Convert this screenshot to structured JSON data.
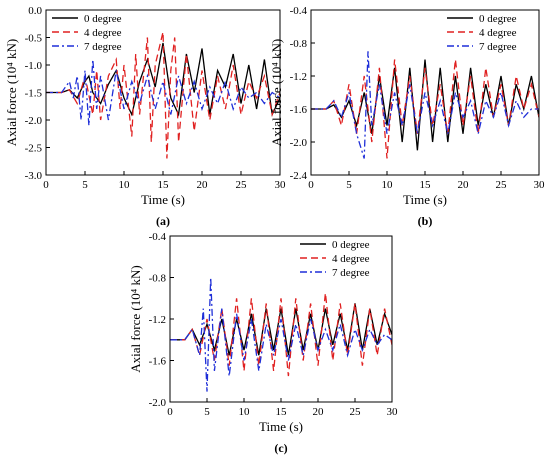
{
  "chart_data": [
    {
      "type": "line",
      "panel_label": "(a)",
      "xlabel": "Time (s)",
      "ylabel": "Axial force (10⁴ kN)",
      "xlim": [
        0,
        30
      ],
      "ylim": [
        -3.0,
        0.0
      ],
      "xticks": [
        0,
        5,
        10,
        15,
        20,
        25,
        30
      ],
      "yticks": [
        0.0,
        -0.5,
        -1.0,
        -1.5,
        -2.0,
        -2.5,
        -3.0
      ],
      "ytick_labels": [
        "0.0",
        "-0.5",
        "-1.0",
        "-1.5",
        "-2.0",
        "-2.5",
        "-3.0"
      ],
      "legend_position": "top-left",
      "series": [
        {
          "name": "0 degree",
          "color": "#000000",
          "dash": "solid",
          "x": [
            0,
            1,
            2,
            3,
            4,
            5,
            5.5,
            6,
            7,
            8,
            9,
            10,
            11,
            12,
            13,
            14,
            15,
            16,
            17,
            18,
            19,
            20,
            21,
            22,
            23,
            24,
            25,
            26,
            27,
            28,
            29,
            30
          ],
          "y": [
            -1.5,
            -1.5,
            -1.5,
            -1.45,
            -1.6,
            -1.3,
            -1.2,
            -1.5,
            -1.7,
            -1.35,
            -1.1,
            -1.6,
            -1.9,
            -1.3,
            -0.9,
            -1.4,
            -0.6,
            -1.6,
            -1.9,
            -0.8,
            -1.5,
            -0.7,
            -1.9,
            -1.1,
            -1.4,
            -0.8,
            -1.7,
            -1.0,
            -1.8,
            -0.9,
            -1.9,
            -1.6
          ]
        },
        {
          "name": "4 degree",
          "color": "#e02020",
          "dash": "7,4",
          "x": [
            0,
            1,
            2,
            3,
            4,
            5,
            6,
            6.5,
            7,
            8,
            9,
            9.5,
            10,
            11,
            11.5,
            12,
            13,
            13.5,
            14,
            15,
            15.5,
            16,
            16.5,
            17,
            18,
            19,
            20,
            21,
            22,
            23,
            24,
            25,
            26,
            27,
            28,
            29,
            30
          ],
          "y": [
            -1.5,
            -1.5,
            -1.5,
            -1.45,
            -1.7,
            -1.2,
            -1.9,
            -1.1,
            -2.0,
            -1.2,
            -0.9,
            -1.8,
            -1.0,
            -2.3,
            -0.8,
            -1.9,
            -0.5,
            -2.4,
            -1.0,
            -0.4,
            -2.7,
            -1.1,
            -0.5,
            -2.4,
            -0.8,
            -2.2,
            -1.1,
            -2.0,
            -1.2,
            -1.8,
            -1.0,
            -1.9,
            -1.3,
            -1.6,
            -1.2,
            -1.9,
            -1.5
          ]
        },
        {
          "name": "7 degree",
          "color": "#1f2fd8",
          "dash": "7,3,2,3",
          "x": [
            0,
            1,
            2,
            3,
            3.5,
            4,
            4.5,
            5,
            5.5,
            6,
            6.5,
            7,
            8,
            9,
            10,
            11,
            12,
            13,
            14,
            15,
            16,
            17,
            18,
            19,
            20,
            21,
            22,
            23,
            24,
            25,
            26,
            27,
            28,
            29,
            30
          ],
          "y": [
            -1.5,
            -1.5,
            -1.5,
            -1.3,
            -1.6,
            -1.2,
            -2.0,
            -1.1,
            -2.1,
            -0.9,
            -1.8,
            -1.2,
            -2.0,
            -1.1,
            -1.8,
            -1.3,
            -1.7,
            -1.2,
            -1.8,
            -1.3,
            -1.9,
            -1.2,
            -1.7,
            -1.3,
            -1.8,
            -1.4,
            -1.7,
            -1.3,
            -1.8,
            -1.4,
            -1.6,
            -1.5,
            -1.7,
            -1.5,
            -1.6
          ]
        }
      ]
    },
    {
      "type": "line",
      "panel_label": "(b)",
      "xlabel": "Time (s)",
      "ylabel": "Axial force (10⁴ kN)",
      "xlim": [
        0,
        30
      ],
      "ylim": [
        -2.4,
        -0.4
      ],
      "xticks": [
        0,
        5,
        10,
        15,
        20,
        25,
        30
      ],
      "yticks": [
        -0.4,
        -0.8,
        -1.2,
        -1.6,
        -2.0,
        -2.4
      ],
      "ytick_labels": [
        "-0.4",
        "-0.8",
        "-1.2",
        "-1.6",
        "-2.0",
        "-2.4"
      ],
      "legend_position": "top-right",
      "series": [
        {
          "name": "0 degree",
          "color": "#000000",
          "dash": "solid",
          "x": [
            0,
            1,
            2,
            3,
            4,
            5,
            6,
            7,
            8,
            9,
            10,
            11,
            12,
            13,
            14,
            15,
            16,
            17,
            18,
            19,
            20,
            21,
            22,
            23,
            24,
            25,
            26,
            27,
            28,
            29,
            30
          ],
          "y": [
            -1.6,
            -1.6,
            -1.6,
            -1.55,
            -1.7,
            -1.5,
            -1.8,
            -1.4,
            -1.9,
            -1.2,
            -1.8,
            -1.1,
            -2.0,
            -1.1,
            -2.1,
            -1.0,
            -2.0,
            -1.1,
            -2.0,
            -1.2,
            -1.9,
            -1.1,
            -1.8,
            -1.3,
            -1.7,
            -1.2,
            -1.8,
            -1.3,
            -1.6,
            -1.2,
            -1.7
          ]
        },
        {
          "name": "4 degree",
          "color": "#e02020",
          "dash": "7,4",
          "x": [
            0,
            1,
            2,
            3,
            4,
            5,
            6,
            7,
            8,
            9,
            10,
            11,
            12,
            13,
            14,
            15,
            16,
            17,
            18,
            19,
            20,
            21,
            22,
            23,
            24,
            25,
            26,
            27,
            28,
            29,
            30
          ],
          "y": [
            -1.6,
            -1.6,
            -1.6,
            -1.5,
            -1.8,
            -1.3,
            -1.9,
            -1.2,
            -2.0,
            -1.1,
            -2.2,
            -1.0,
            -1.8,
            -1.2,
            -1.9,
            -1.1,
            -1.8,
            -1.3,
            -1.9,
            -1.0,
            -1.8,
            -1.2,
            -1.9,
            -1.1,
            -1.7,
            -1.3,
            -1.8,
            -1.2,
            -1.6,
            -1.3,
            -1.7
          ]
        },
        {
          "name": "7 degree",
          "color": "#1f2fd8",
          "dash": "7,3,2,3",
          "x": [
            0,
            1,
            2,
            3,
            4,
            5,
            6,
            7,
            7.5,
            8,
            9,
            10,
            11,
            12,
            13,
            14,
            15,
            16,
            17,
            18,
            19,
            20,
            21,
            22,
            23,
            24,
            25,
            26,
            27,
            28,
            29,
            30
          ],
          "y": [
            -1.6,
            -1.6,
            -1.6,
            -1.5,
            -1.7,
            -1.4,
            -1.9,
            -2.2,
            -0.9,
            -1.8,
            -1.3,
            -1.9,
            -1.4,
            -1.8,
            -1.3,
            -1.9,
            -1.4,
            -1.8,
            -1.5,
            -1.9,
            -1.4,
            -1.7,
            -1.5,
            -1.9,
            -1.5,
            -1.7,
            -1.4,
            -1.8,
            -1.5,
            -1.7,
            -1.6,
            -1.6
          ]
        }
      ]
    },
    {
      "type": "line",
      "panel_label": "(c)",
      "xlabel": "Time (s)",
      "ylabel": "Axial force (10⁴ kN)",
      "xlim": [
        0,
        30
      ],
      "ylim": [
        -2.0,
        -0.4
      ],
      "xticks": [
        0,
        5,
        10,
        15,
        20,
        25,
        30
      ],
      "yticks": [
        -0.4,
        -0.8,
        -1.2,
        -1.6,
        -2.0
      ],
      "ytick_labels": [
        "-0.4",
        "-0.8",
        "-1.2",
        "-1.6",
        "-2.0"
      ],
      "legend_position": "top-right",
      "series": [
        {
          "name": "0 degree",
          "color": "#000000",
          "dash": "solid",
          "x": [
            0,
            1,
            2,
            3,
            4,
            5,
            6,
            7,
            8,
            9,
            10,
            11,
            12,
            13,
            14,
            15,
            16,
            17,
            18,
            19,
            20,
            21,
            22,
            23,
            24,
            25,
            26,
            27,
            28,
            29,
            30
          ],
          "y": [
            -1.4,
            -1.4,
            -1.4,
            -1.3,
            -1.45,
            -1.25,
            -1.5,
            -1.2,
            -1.55,
            -1.2,
            -1.5,
            -1.15,
            -1.55,
            -1.1,
            -1.5,
            -1.1,
            -1.55,
            -1.1,
            -1.5,
            -1.15,
            -1.5,
            -1.1,
            -1.45,
            -1.15,
            -1.5,
            -1.05,
            -1.5,
            -1.1,
            -1.45,
            -1.15,
            -1.35
          ]
        },
        {
          "name": "4 degree",
          "color": "#e02020",
          "dash": "7,4",
          "x": [
            0,
            1,
            2,
            3,
            4,
            5,
            6,
            7,
            8,
            9,
            10,
            11,
            12,
            13,
            14,
            15,
            16,
            17,
            18,
            19,
            20,
            21,
            22,
            23,
            24,
            25,
            26,
            27,
            28,
            29,
            30
          ],
          "y": [
            -1.4,
            -1.4,
            -1.4,
            -1.3,
            -1.55,
            -1.2,
            -1.6,
            -1.1,
            -1.65,
            -1.0,
            -1.7,
            -1.0,
            -1.65,
            -1.05,
            -1.7,
            -1.0,
            -1.75,
            -1.0,
            -1.6,
            -1.05,
            -1.65,
            -0.95,
            -1.6,
            -1.05,
            -1.55,
            -1.05,
            -1.65,
            -1.1,
            -1.55,
            -1.1,
            -1.45
          ]
        },
        {
          "name": "7 degree",
          "color": "#1f2fd8",
          "dash": "7,3,2,3",
          "x": [
            0,
            1,
            2,
            3,
            4,
            4.5,
            5,
            5.5,
            6,
            7,
            8,
            9,
            10,
            11,
            12,
            13,
            14,
            15,
            16,
            17,
            18,
            19,
            20,
            21,
            22,
            23,
            24,
            25,
            26,
            27,
            28,
            29,
            30
          ],
          "y": [
            -1.4,
            -1.4,
            -1.4,
            -1.3,
            -1.55,
            -1.1,
            -1.9,
            -0.8,
            -1.7,
            -1.1,
            -1.75,
            -1.15,
            -1.6,
            -1.2,
            -1.7,
            -1.25,
            -1.55,
            -1.2,
            -1.6,
            -1.25,
            -1.55,
            -1.2,
            -1.5,
            -1.3,
            -1.5,
            -1.25,
            -1.55,
            -1.3,
            -1.5,
            -1.3,
            -1.45,
            -1.35,
            -1.4
          ]
        }
      ]
    }
  ]
}
